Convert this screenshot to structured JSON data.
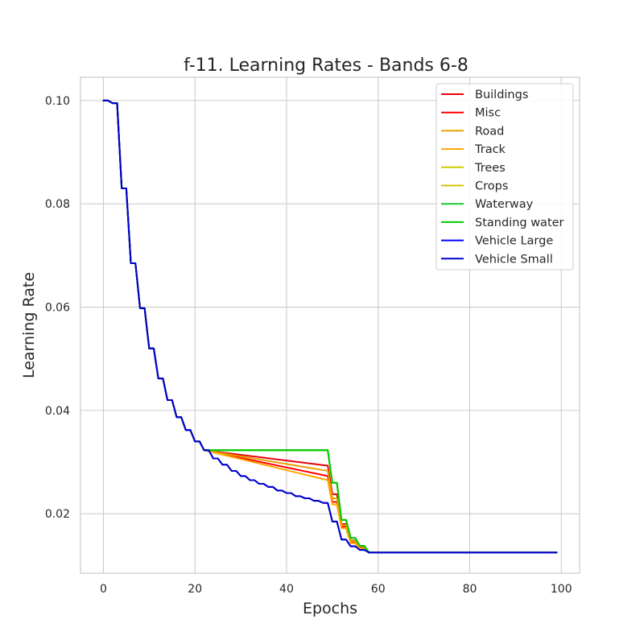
{
  "chart_data": {
    "type": "line",
    "title": "f-11. Learning Rates - Bands 6-8",
    "xlabel": "Epochs",
    "ylabel": "Learning Rate",
    "xlim": [
      -5,
      104
    ],
    "ylim": [
      0.0085,
      0.1045
    ],
    "xticks": [
      0,
      20,
      40,
      60,
      80,
      100
    ],
    "yticks": [
      0.02,
      0.04,
      0.06,
      0.08,
      0.1
    ],
    "xtick_labels": [
      "0",
      "20",
      "40",
      "60",
      "80",
      "100"
    ],
    "ytick_labels": [
      "0.02",
      "0.04",
      "0.06",
      "0.08",
      "0.10"
    ],
    "grid": true,
    "legend_position": "top-right",
    "series": [
      {
        "name": "Buildings",
        "color": "#e8000b",
        "x": [
          0,
          1,
          2,
          3,
          4,
          5,
          6,
          7,
          8,
          9,
          10,
          11,
          12,
          13,
          14,
          15,
          16,
          17,
          18,
          19,
          20,
          21,
          22,
          49,
          50,
          51,
          52,
          53,
          54,
          55,
          56,
          57,
          58,
          99
        ],
        "y": [
          0.1,
          0.1,
          0.0995,
          0.0995,
          0.083,
          0.083,
          0.0685,
          0.0685,
          0.0598,
          0.0598,
          0.052,
          0.052,
          0.0462,
          0.0462,
          0.042,
          0.042,
          0.0387,
          0.0387,
          0.0362,
          0.0362,
          0.034,
          0.034,
          0.0323,
          0.0293,
          0.0238,
          0.0238,
          0.018,
          0.018,
          0.0148,
          0.0148,
          0.0135,
          0.0135,
          0.0125,
          0.0125
        ]
      },
      {
        "name": "Misc",
        "color": "#ff0000",
        "x": [
          0,
          1,
          2,
          3,
          4,
          5,
          6,
          7,
          8,
          9,
          10,
          11,
          12,
          13,
          14,
          15,
          16,
          17,
          18,
          19,
          20,
          21,
          22,
          49,
          50,
          51,
          52,
          53,
          54,
          55,
          56,
          57,
          58,
          99
        ],
        "y": [
          0.1,
          0.1,
          0.0995,
          0.0995,
          0.083,
          0.083,
          0.0685,
          0.0685,
          0.0598,
          0.0598,
          0.052,
          0.052,
          0.0462,
          0.0462,
          0.042,
          0.042,
          0.0387,
          0.0387,
          0.0362,
          0.0362,
          0.034,
          0.034,
          0.0323,
          0.0273,
          0.0223,
          0.0223,
          0.0175,
          0.0175,
          0.0145,
          0.0145,
          0.0133,
          0.0133,
          0.0125,
          0.0125
        ]
      },
      {
        "name": "Road",
        "color": "#e6a100",
        "x": [
          0,
          1,
          2,
          3,
          4,
          5,
          6,
          7,
          8,
          9,
          10,
          11,
          12,
          13,
          14,
          15,
          16,
          17,
          18,
          19,
          20,
          21,
          22,
          49,
          50,
          51,
          52,
          53,
          54,
          55,
          56,
          57,
          58,
          99
        ],
        "y": [
          0.1,
          0.1,
          0.0995,
          0.0995,
          0.083,
          0.083,
          0.0685,
          0.0685,
          0.0598,
          0.0598,
          0.052,
          0.052,
          0.0462,
          0.0462,
          0.042,
          0.042,
          0.0387,
          0.0387,
          0.0362,
          0.0362,
          0.034,
          0.034,
          0.0323,
          0.0283,
          0.023,
          0.023,
          0.0178,
          0.0178,
          0.0147,
          0.0147,
          0.0134,
          0.0134,
          0.0125,
          0.0125
        ]
      },
      {
        "name": "Track",
        "color": "#ffa500",
        "x": [
          0,
          1,
          2,
          3,
          4,
          5,
          6,
          7,
          8,
          9,
          10,
          11,
          12,
          13,
          14,
          15,
          16,
          17,
          18,
          19,
          20,
          21,
          22,
          49,
          50,
          51,
          52,
          53,
          54,
          55,
          56,
          57,
          58,
          99
        ],
        "y": [
          0.1,
          0.1,
          0.0995,
          0.0995,
          0.083,
          0.083,
          0.0685,
          0.0685,
          0.0598,
          0.0598,
          0.052,
          0.052,
          0.0462,
          0.0462,
          0.042,
          0.042,
          0.0387,
          0.0387,
          0.0362,
          0.0362,
          0.034,
          0.034,
          0.0323,
          0.0265,
          0.0218,
          0.0218,
          0.0172,
          0.0172,
          0.0143,
          0.0143,
          0.0132,
          0.0132,
          0.0125,
          0.0125
        ]
      },
      {
        "name": "Trees",
        "color": "#cccc00",
        "x": [
          0,
          1,
          2,
          3,
          4,
          5,
          6,
          7,
          8,
          9,
          10,
          11,
          12,
          13,
          14,
          15,
          16,
          17,
          18,
          19,
          20,
          21,
          22,
          49,
          50,
          51,
          52,
          53,
          54,
          55,
          56,
          57,
          58,
          99
        ],
        "y": [
          0.1,
          0.1,
          0.0995,
          0.0995,
          0.083,
          0.083,
          0.0685,
          0.0685,
          0.0598,
          0.0598,
          0.052,
          0.052,
          0.0462,
          0.0462,
          0.042,
          0.042,
          0.0387,
          0.0387,
          0.0362,
          0.0362,
          0.034,
          0.034,
          0.0323,
          0.0323,
          0.026,
          0.026,
          0.0188,
          0.0188,
          0.0153,
          0.0153,
          0.0138,
          0.0138,
          0.0125,
          0.0125
        ]
      },
      {
        "name": "Crops",
        "color": "#d4c400",
        "x": [
          0,
          1,
          2,
          3,
          4,
          5,
          6,
          7,
          8,
          9,
          10,
          11,
          12,
          13,
          14,
          15,
          16,
          17,
          18,
          19,
          20,
          21,
          22,
          49,
          50,
          51,
          52,
          53,
          54,
          55,
          56,
          57,
          58,
          99
        ],
        "y": [
          0.1,
          0.1,
          0.0995,
          0.0995,
          0.083,
          0.083,
          0.0685,
          0.0685,
          0.0598,
          0.0598,
          0.052,
          0.052,
          0.0462,
          0.0462,
          0.042,
          0.042,
          0.0387,
          0.0387,
          0.0362,
          0.0362,
          0.034,
          0.034,
          0.0323,
          0.0323,
          0.026,
          0.026,
          0.0188,
          0.0188,
          0.0153,
          0.0153,
          0.0138,
          0.0138,
          0.0125,
          0.0125
        ]
      },
      {
        "name": "Waterway",
        "color": "#1ac938",
        "x": [
          0,
          1,
          2,
          3,
          4,
          5,
          6,
          7,
          8,
          9,
          10,
          11,
          12,
          13,
          14,
          15,
          16,
          17,
          18,
          19,
          20,
          21,
          22,
          49,
          50,
          51,
          52,
          53,
          54,
          55,
          56,
          57,
          58,
          99
        ],
        "y": [
          0.1,
          0.1,
          0.0995,
          0.0995,
          0.083,
          0.083,
          0.0685,
          0.0685,
          0.0598,
          0.0598,
          0.052,
          0.052,
          0.0462,
          0.0462,
          0.042,
          0.042,
          0.0387,
          0.0387,
          0.0362,
          0.0362,
          0.034,
          0.034,
          0.0323,
          0.0323,
          0.026,
          0.026,
          0.0188,
          0.0188,
          0.0153,
          0.0153,
          0.0138,
          0.0138,
          0.0125,
          0.0125
        ]
      },
      {
        "name": "Standing water",
        "color": "#00cc00",
        "x": [
          0,
          1,
          2,
          3,
          4,
          5,
          6,
          7,
          8,
          9,
          10,
          11,
          12,
          13,
          14,
          15,
          16,
          17,
          18,
          19,
          20,
          21,
          22,
          49,
          50,
          51,
          52,
          53,
          54,
          55,
          56,
          57,
          58,
          99
        ],
        "y": [
          0.1,
          0.1,
          0.0995,
          0.0995,
          0.083,
          0.083,
          0.0685,
          0.0685,
          0.0598,
          0.0598,
          0.052,
          0.052,
          0.0462,
          0.0462,
          0.042,
          0.042,
          0.0387,
          0.0387,
          0.0362,
          0.0362,
          0.034,
          0.034,
          0.0323,
          0.0323,
          0.026,
          0.026,
          0.0188,
          0.0188,
          0.0153,
          0.0153,
          0.0138,
          0.0138,
          0.0125,
          0.0125
        ]
      },
      {
        "name": "Vehicle Large",
        "color": "#0000ff",
        "x": [
          0,
          1,
          2,
          3,
          4,
          5,
          6,
          7,
          8,
          9,
          10,
          11,
          12,
          13,
          14,
          15,
          16,
          17,
          18,
          19,
          20,
          21,
          22,
          23,
          24,
          25,
          26,
          27,
          28,
          29,
          30,
          31,
          32,
          33,
          34,
          35,
          36,
          37,
          38,
          39,
          40,
          41,
          42,
          43,
          44,
          45,
          46,
          47,
          48,
          49,
          50,
          51,
          52,
          53,
          54,
          55,
          56,
          57,
          58,
          99
        ],
        "y": [
          0.1,
          0.1,
          0.0995,
          0.0995,
          0.083,
          0.083,
          0.0685,
          0.0685,
          0.0598,
          0.0598,
          0.052,
          0.052,
          0.0462,
          0.0462,
          0.042,
          0.042,
          0.0387,
          0.0387,
          0.0362,
          0.0362,
          0.034,
          0.034,
          0.0323,
          0.0323,
          0.0307,
          0.0307,
          0.0295,
          0.0295,
          0.0283,
          0.0283,
          0.0273,
          0.0273,
          0.0265,
          0.0265,
          0.0258,
          0.0258,
          0.0252,
          0.0252,
          0.0245,
          0.0245,
          0.024,
          0.024,
          0.0234,
          0.0234,
          0.023,
          0.023,
          0.0225,
          0.0225,
          0.0221,
          0.0221,
          0.0185,
          0.0185,
          0.015,
          0.015,
          0.0137,
          0.0137,
          0.013,
          0.013,
          0.0125,
          0.0125
        ]
      },
      {
        "name": "Vehicle Small",
        "color": "#0000cc",
        "x": [
          0,
          1,
          2,
          3,
          4,
          5,
          6,
          7,
          8,
          9,
          10,
          11,
          12,
          13,
          14,
          15,
          16,
          17,
          18,
          19,
          20,
          21,
          22,
          23,
          24,
          25,
          26,
          27,
          28,
          29,
          30,
          31,
          32,
          33,
          34,
          35,
          36,
          37,
          38,
          39,
          40,
          41,
          42,
          43,
          44,
          45,
          46,
          47,
          48,
          49,
          50,
          51,
          52,
          53,
          54,
          55,
          56,
          57,
          58,
          99
        ],
        "y": [
          0.1,
          0.1,
          0.0995,
          0.0995,
          0.083,
          0.083,
          0.0685,
          0.0685,
          0.0598,
          0.0598,
          0.052,
          0.052,
          0.0462,
          0.0462,
          0.042,
          0.042,
          0.0387,
          0.0387,
          0.0362,
          0.0362,
          0.034,
          0.034,
          0.0323,
          0.0323,
          0.0307,
          0.0307,
          0.0295,
          0.0295,
          0.0283,
          0.0283,
          0.0273,
          0.0273,
          0.0265,
          0.0265,
          0.0258,
          0.0258,
          0.0252,
          0.0252,
          0.0245,
          0.0245,
          0.024,
          0.024,
          0.0234,
          0.0234,
          0.023,
          0.023,
          0.0225,
          0.0225,
          0.0221,
          0.0221,
          0.0185,
          0.0185,
          0.015,
          0.015,
          0.0137,
          0.0137,
          0.013,
          0.013,
          0.0125,
          0.0125
        ]
      }
    ]
  }
}
